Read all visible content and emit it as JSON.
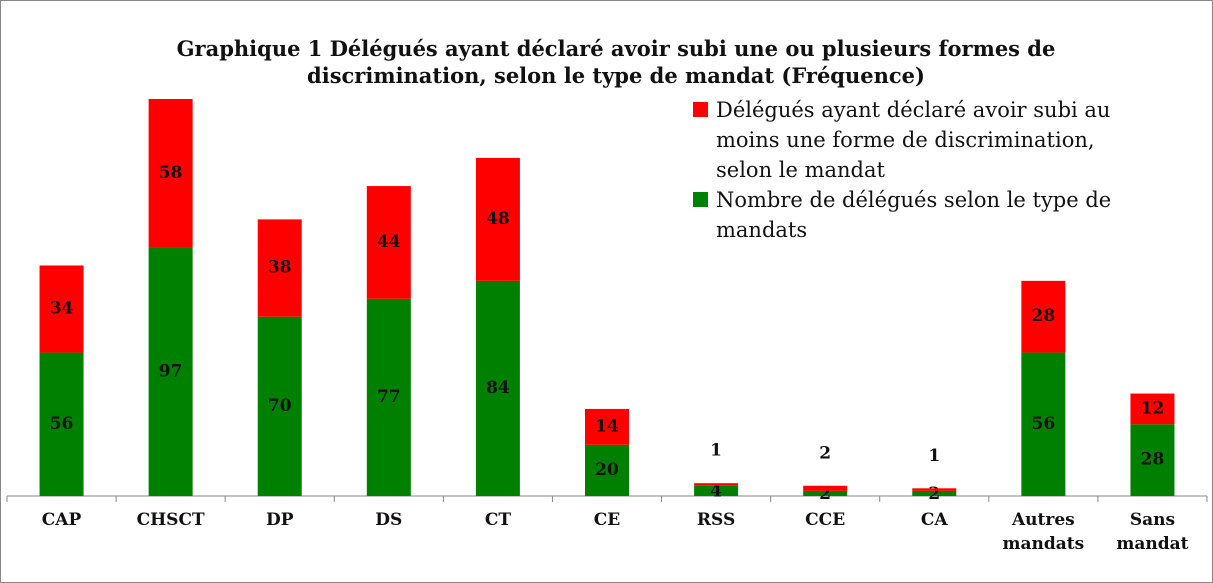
{
  "chart_data": {
    "type": "bar",
    "stacked": true,
    "title": "Graphique 1 Délégués ayant déclaré avoir subi une ou plusieurs formes de discrimination, selon le type de mandat (Fréquence)",
    "categories": [
      "CAP",
      "CHSCT",
      "DP",
      "DS",
      "CT",
      "CE",
      "RSS",
      "CCE",
      "CA",
      "Autres mandats",
      "Sans mandat"
    ],
    "series": [
      {
        "name": "Nombre de délégués selon le type de mandats",
        "color": "#008000",
        "values": [
          56,
          97,
          70,
          77,
          84,
          20,
          4,
          2,
          2,
          56,
          28
        ]
      },
      {
        "name": "Délégués ayant déclaré avoir subi au moins une forme de discrimination, selon le mandat",
        "color": "#ff0000",
        "values": [
          34,
          58,
          38,
          44,
          48,
          14,
          1,
          2,
          1,
          28,
          12
        ]
      }
    ],
    "legend": "top-right"
  }
}
